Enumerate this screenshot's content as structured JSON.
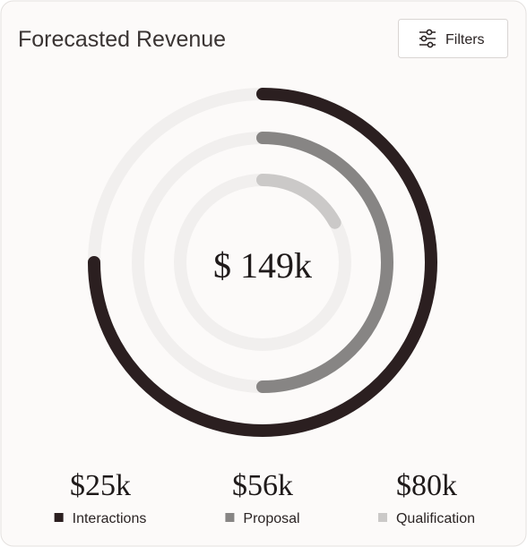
{
  "chart_data": {
    "type": "radial",
    "title": "Forecasted Revenue",
    "button": "Filters",
    "center_label": "$ 149k",
    "rlim": [
      0,
      100
    ],
    "series": [
      {
        "name": "Interactions",
        "color": "#2b1f20",
        "progress": 75,
        "value_label": "$25k"
      },
      {
        "name": "Proposal",
        "color": "#878584",
        "progress": 50,
        "value_label": "$56k"
      },
      {
        "name": "Qualification",
        "color": "#cbc9c8",
        "progress": 17,
        "value_label": "$80k"
      }
    ],
    "track_color": "#f1efee"
  }
}
